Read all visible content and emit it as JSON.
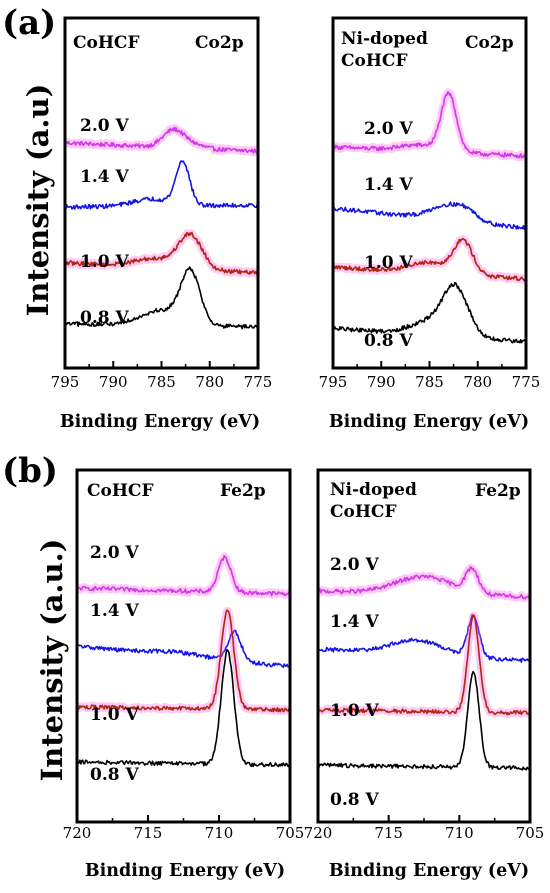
{
  "panel_labels": {
    "a": "(a)",
    "b": "(b)"
  },
  "colors": {
    "2.0 V": "#d03ae8",
    "1.4 V": "#1414e8",
    "1.0 V": "#b22510",
    "0.8 V": "#000000",
    "halo": "#ff66e6"
  },
  "chart_data": [
    {
      "type": "line",
      "id": "a-left",
      "panel": "(a)",
      "ylabel": "Intensity (a.u)",
      "xlabel": "Binding Energy (eV)",
      "sample_label": [
        "CoHCF"
      ],
      "element_label": "Co2p",
      "xlim": [
        795,
        775
      ],
      "xticks": [
        795,
        790,
        785,
        780,
        775
      ],
      "series": [
        {
          "name": "2.0 V",
          "offset": 3.0,
          "features": {
            "base_left": 0.12,
            "base_right": -0.02,
            "peaks": [
              [
                783.7,
                0.3,
                1.1
              ],
              [
                781.5,
                0.05,
                1.0
              ]
            ]
          }
        },
        {
          "name": "1.4 V",
          "offset": 2.0,
          "features": {
            "base_left": 0.05,
            "base_right": 0.08,
            "peaks": [
              [
                782.8,
                0.72,
                0.7
              ],
              [
                786.0,
                0.12,
                2.0
              ]
            ]
          }
        },
        {
          "name": "1.0 V",
          "offset": 1.0,
          "features": {
            "base_left": 0.12,
            "base_right": -0.05,
            "peaks": [
              [
                782.0,
                0.55,
                1.2
              ],
              [
                785.5,
                0.15,
                2.2
              ]
            ]
          }
        },
        {
          "name": "0.8 V",
          "offset": 0.0,
          "features": {
            "base_left": 0.1,
            "base_right": 0.05,
            "peaks": [
              [
                782.0,
                0.85,
                1.0
              ],
              [
                785.0,
                0.25,
                2.2
              ]
            ]
          }
        }
      ]
    },
    {
      "type": "line",
      "id": "a-right",
      "panel": "(a)",
      "ylabel": "",
      "xlabel": "Binding Energy (eV)",
      "sample_label": [
        "Ni-doped",
        "CoHCF"
      ],
      "element_label": "Co2p",
      "xlim": [
        795,
        775
      ],
      "xticks": [
        795,
        790,
        785,
        780,
        775
      ],
      "series": [
        {
          "name": "2.0 V",
          "offset": 3.0,
          "features": {
            "base_left": 0.1,
            "base_right": -0.05,
            "peaks": [
              [
                783.0,
                0.95,
                0.8
              ],
              [
                786.0,
                0.1,
                2.0
              ]
            ]
          }
        },
        {
          "name": "1.4 V",
          "offset": 2.0,
          "features": {
            "base_left": 0.08,
            "base_right": -0.25,
            "peaks": [
              [
                783.0,
                0.25,
                1.8
              ],
              [
                781.0,
                0.1,
                1.0
              ]
            ]
          }
        },
        {
          "name": "1.0 V",
          "offset": 1.0,
          "features": {
            "base_left": 0.1,
            "base_right": -0.1,
            "peaks": [
              [
                781.5,
                0.55,
                1.0
              ],
              [
                785.0,
                0.18,
                2.0
              ]
            ]
          }
        },
        {
          "name": "0.8 V",
          "offset": 0.0,
          "features": {
            "base_left": 0.08,
            "base_right": -0.15,
            "peaks": [
              [
                782.3,
                0.78,
                1.3
              ],
              [
                785.0,
                0.22,
                2.0
              ]
            ]
          }
        }
      ]
    },
    {
      "type": "line",
      "id": "b-left",
      "panel": "(b)",
      "ylabel": "Intensity (a.u.)",
      "xlabel": "Binding Energy (eV)",
      "sample_label": [
        "CoHCF"
      ],
      "element_label": "Fe2p",
      "xlim": [
        720,
        705
      ],
      "xticks": [
        720,
        715,
        710,
        705
      ],
      "series": [
        {
          "name": "2.0 V",
          "offset": 3.0,
          "features": {
            "base_left": 0.05,
            "base_right": -0.05,
            "peaks": [
              [
                709.6,
                0.6,
                0.45
              ]
            ]
          }
        },
        {
          "name": "1.4 V",
          "offset": 2.0,
          "features": {
            "base_left": 0.05,
            "base_right": -0.3,
            "peaks": [
              [
                708.9,
                0.5,
                0.45
              ],
              [
                713.0,
                0.06,
                1.8
              ]
            ]
          }
        },
        {
          "name": "1.0 V",
          "offset": 0.95,
          "features": {
            "base_left": 0.05,
            "base_right": 0.0,
            "peaks": [
              [
                709.4,
                1.7,
                0.45
              ]
            ]
          }
        },
        {
          "name": "0.8 V",
          "offset": 0.0,
          "features": {
            "base_left": 0.05,
            "base_right": 0.0,
            "peaks": [
              [
                709.4,
                1.95,
                0.45
              ]
            ]
          }
        }
      ]
    },
    {
      "type": "line",
      "id": "b-right",
      "panel": "(b)",
      "ylabel": "",
      "xlabel": "Binding Energy (eV)",
      "sample_label": [
        "Ni-doped",
        "CoHCF"
      ],
      "element_label": "Fe2p",
      "xlim": [
        720,
        705
      ],
      "xticks": [
        720,
        715,
        710,
        705
      ],
      "series": [
        {
          "name": "2.0 V",
          "offset": 3.0,
          "features": {
            "base_left": 0.05,
            "base_right": -0.05,
            "peaks": [
              [
                709.1,
                0.4,
                0.45
              ],
              [
                712.5,
                0.3,
                2.0
              ]
            ]
          }
        },
        {
          "name": "1.4 V",
          "offset": 2.0,
          "features": {
            "base_left": 0.05,
            "base_right": -0.15,
            "peaks": [
              [
                709.0,
                0.7,
                0.4
              ],
              [
                713.0,
                0.25,
                1.8
              ]
            ]
          }
        },
        {
          "name": "1.0 V",
          "offset": 0.95,
          "features": {
            "base_left": 0.05,
            "base_right": 0.0,
            "peaks": [
              [
                709.0,
                1.65,
                0.4
              ]
            ]
          }
        },
        {
          "name": "0.8 V",
          "offset": 0.0,
          "features": {
            "base_left": 0.05,
            "base_right": 0.0,
            "peaks": [
              [
                709.0,
                1.65,
                0.4
              ]
            ]
          }
        }
      ]
    }
  ]
}
